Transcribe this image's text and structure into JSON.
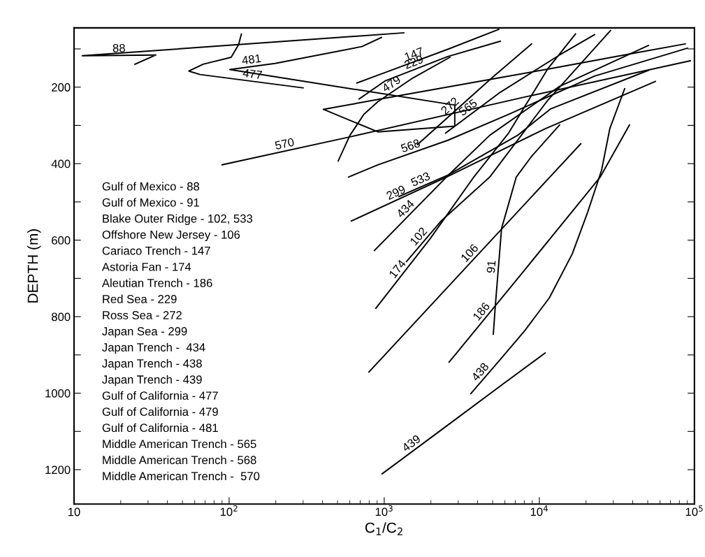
{
  "chart_data": {
    "type": "line",
    "xlabel": "C$_{1}$/C$_{2}$",
    "ylabel": "DEPTH (m)",
    "log": "x",
    "grid": false,
    "legend": false,
    "marker": "none",
    "line_style": "solid",
    "xlim": [
      10,
      100000
    ],
    "ylim": [
      1290,
      45
    ],
    "xticks": [
      {
        "value": 10,
        "label": "10"
      },
      {
        "value": 100,
        "label": "10$^{2}$"
      },
      {
        "value": 1000,
        "label": "10$^{3}$"
      },
      {
        "value": 10000,
        "label": "10$^{4}$"
      },
      {
        "value": 100000,
        "label": "10$^{5}$"
      }
    ],
    "yticks": [
      {
        "value": 100,
        "label": null
      },
      200,
      {
        "value": 300,
        "label": null
      },
      400,
      {
        "value": 500,
        "label": null
      },
      600,
      {
        "value": 700,
        "label": null
      },
      800,
      {
        "value": 900,
        "label": null
      },
      1000,
      {
        "value": 1100,
        "label": null
      },
      1200
    ],
    "series": [
      {
        "name": "88",
        "color": "#000000",
        "x": [
          24.7,
          33.7,
          11.3,
          1337
        ],
        "values": [
          140,
          116,
          118,
          58
        ]
      },
      {
        "name": "477",
        "color": "#000000",
        "x": [
          120,
          115,
          103,
          68,
          55,
          65,
          300
        ],
        "values": [
          61,
          89,
          122,
          140,
          158,
          167,
          202
        ]
      },
      {
        "name": "481",
        "color": "#000000",
        "x": [
          959,
          718,
          198,
          101,
          2850,
          2850,
          910,
          405,
          1010,
          4790,
          11300,
          41000,
          87300
        ],
        "values": [
          70,
          94,
          138,
          154,
          247,
          302,
          317,
          258,
          229,
          180,
          153,
          111,
          87
        ]
      },
      {
        "name": "147",
        "color": "#000000",
        "x": [
          667,
          1010,
          2570,
          5480
        ],
        "values": [
          189,
          162,
          101,
          49
        ]
      },
      {
        "name": "229",
        "color": "#000000",
        "x": [
          689,
          1010,
          2570,
          5600
        ],
        "values": [
          231,
          184,
          120,
          80
        ]
      },
      {
        "name": "479",
        "color": "#000000",
        "x": [
          505,
          601,
          740,
          910,
          1530,
          2650
        ],
        "values": [
          393,
          326,
          271,
          238,
          176,
          122
        ]
      },
      {
        "name": "272",
        "color": "#000000",
        "x": [
          1640,
          4940,
          8910
        ],
        "values": [
          350,
          176,
          87
        ]
      },
      {
        "name": "565",
        "color": "#000000",
        "x": [
          2490,
          5480,
          13500,
          22700
        ],
        "values": [
          320,
          216,
          116,
          63
        ]
      },
      {
        "name": "91",
        "color": "#000000",
        "x": [
          13500,
          8910,
          7100,
          6340,
          5710,
          5200,
          5050
        ],
        "values": [
          299,
          381,
          435,
          505,
          569,
          773,
          846
        ]
      },
      {
        "name": "186",
        "color": "#000000",
        "x": [
          2620,
          8040,
          24700,
          38100
        ],
        "values": [
          919,
          678,
          435,
          299
        ]
      },
      {
        "name": "106",
        "color": "#000000",
        "x": [
          796,
          18500
        ],
        "values": [
          945,
          348
        ]
      },
      {
        "name": "438",
        "color": "#000000",
        "x": [
          35500,
          28500,
          25200,
          20500,
          16300,
          11600,
          8040,
          5600,
          3620
        ],
        "values": [
          204,
          308,
          417,
          527,
          636,
          751,
          837,
          912,
          1001
        ]
      },
      {
        "name": "439",
        "color": "#000000",
        "x": [
          968,
          2620,
          5830,
          10900
        ],
        "values": [
          1211,
          1081,
          976,
          895
        ]
      },
      {
        "name": "299",
        "color": "#000000",
        "x": [
          614,
          2520,
          11000,
          56000
        ],
        "values": [
          550,
          435,
          308,
          185
        ]
      },
      {
        "name": "434",
        "color": "#000000",
        "x": [
          865,
          2520,
          4790,
          13500,
          50500
        ],
        "values": [
          627,
          435,
          326,
          198,
          91
        ]
      },
      {
        "name": "102",
        "color": "#000000",
        "x": [
          1390,
          2340,
          4790,
          11300,
          28800
        ],
        "values": [
          656,
          549,
          435,
          235,
          52
        ]
      },
      {
        "name": "174",
        "color": "#000000",
        "x": [
          883,
          1980,
          3780,
          6340,
          11300,
          17100
        ],
        "values": [
          778,
          596,
          435,
          320,
          153,
          61
        ]
      },
      {
        "name": "533",
        "color": "#000000",
        "x": [
          1245,
          2570,
          7240,
          11800,
          50500
        ],
        "values": [
          486,
          430,
          326,
          257,
          156
        ]
      },
      {
        "name": "568",
        "color": "#000000",
        "x": [
          589,
          910,
          2570,
          6340,
          22700,
          90200
        ],
        "values": [
          435,
          403,
          339,
          271,
          171,
          98
        ]
      },
      {
        "name": "570",
        "color": "#000000",
        "x": [
          90.2,
          601,
          8040,
          94000
        ],
        "values": [
          403,
          330,
          226,
          131
        ]
      }
    ],
    "annotations": [
      "Gulf of Mexico - 88",
      "Gulf of Mexico - 91",
      "Blake Outer Ridge - 102, 533",
      "Offshore New Jersey - 106",
      "Cariaco Trench - 147",
      "Astoria Fan - 174",
      "Aleutian Trench - 186",
      "Red Sea - 229",
      "Ross Sea - 272",
      "Japan Sea - 299",
      "Japan Trench -  434",
      "Japan Trench - 438",
      "Japan Trench - 439",
      "Gulf of California - 477",
      "Gulf of California - 479",
      "Gulf of California - 481",
      "Middle American Trench - 565",
      "Middle American Trench - 568",
      "Middle American Trench -  570"
    ]
  }
}
